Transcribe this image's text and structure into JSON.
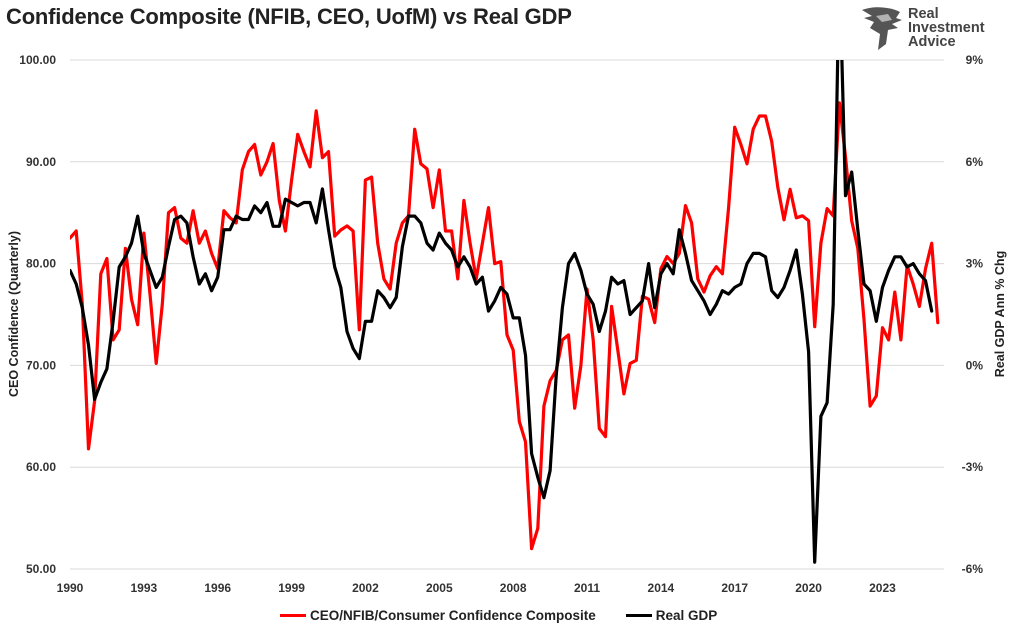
{
  "header": {
    "title": "Confidence Composite (NFIB, CEO, UofM) vs Real GDP"
  },
  "logo": {
    "line1": "Real",
    "line2": "Investment",
    "line3": "Advice"
  },
  "colors": {
    "confidence": "#ff0000",
    "gdp": "#000000",
    "grid": "#d9d9d9",
    "text": "#222222"
  },
  "chart_data": {
    "type": "line",
    "title": "Confidence Composite (NFIB, CEO, UofM) vs Real GDP",
    "xlabel": "",
    "ylabel_left": "CEO Confidence (Quarterly)",
    "ylabel_right": "Real GDP Ann % Chg",
    "x_range": [
      1990,
      2025.5
    ],
    "x_ticks": [
      "1990",
      "1993",
      "1996",
      "1999",
      "2002",
      "2005",
      "2008",
      "2011",
      "2014",
      "2017",
      "2020",
      "2023"
    ],
    "y_left_range": [
      50,
      100
    ],
    "y_left_ticks": [
      "50.00",
      "60.00",
      "70.00",
      "80.00",
      "90.00",
      "100.00"
    ],
    "y_right_range": [
      -6,
      9
    ],
    "y_right_ticks": [
      "-6%",
      "-3%",
      "0%",
      "3%",
      "6%",
      "9%"
    ],
    "grid": "horizontal",
    "legend_position": "bottom",
    "series": [
      {
        "name": "CEO/NFIB/Consumer Confidence Composite",
        "axis": "left",
        "points": [
          [
            1990.0,
            82.5
          ],
          [
            1990.25,
            83.2
          ],
          [
            1990.5,
            76.0
          ],
          [
            1990.75,
            61.8
          ],
          [
            1991.0,
            66.5
          ],
          [
            1991.25,
            79.0
          ],
          [
            1991.5,
            80.5
          ],
          [
            1991.75,
            72.5
          ],
          [
            1992.0,
            73.5
          ],
          [
            1992.25,
            81.5
          ],
          [
            1992.5,
            76.5
          ],
          [
            1992.75,
            74.0
          ],
          [
            1993.0,
            83.0
          ],
          [
            1993.25,
            77.0
          ],
          [
            1993.5,
            70.2
          ],
          [
            1993.75,
            76.0
          ],
          [
            1994.0,
            85.0
          ],
          [
            1994.25,
            85.5
          ],
          [
            1994.5,
            82.5
          ],
          [
            1994.75,
            82.0
          ],
          [
            1995.0,
            85.2
          ],
          [
            1995.25,
            82.0
          ],
          [
            1995.5,
            83.2
          ],
          [
            1995.75,
            81.0
          ],
          [
            1996.0,
            79.5
          ],
          [
            1996.25,
            85.2
          ],
          [
            1996.5,
            84.5
          ],
          [
            1996.75,
            84.0
          ],
          [
            1997.0,
            89.2
          ],
          [
            1997.25,
            91.0
          ],
          [
            1997.5,
            91.7
          ],
          [
            1997.75,
            88.7
          ],
          [
            1998.0,
            90.0
          ],
          [
            1998.25,
            91.8
          ],
          [
            1998.5,
            86.2
          ],
          [
            1998.75,
            83.2
          ],
          [
            1999.0,
            88.2
          ],
          [
            1999.25,
            92.7
          ],
          [
            1999.5,
            91.0
          ],
          [
            1999.75,
            89.5
          ],
          [
            2000.0,
            95.0
          ],
          [
            2000.25,
            90.4
          ],
          [
            2000.5,
            91.0
          ],
          [
            2000.75,
            82.7
          ],
          [
            2001.0,
            83.3
          ],
          [
            2001.25,
            83.7
          ],
          [
            2001.5,
            83.2
          ],
          [
            2001.75,
            73.5
          ],
          [
            2002.0,
            88.2
          ],
          [
            2002.25,
            88.5
          ],
          [
            2002.5,
            82.0
          ],
          [
            2002.75,
            78.5
          ],
          [
            2003.0,
            77.5
          ],
          [
            2003.25,
            82.0
          ],
          [
            2003.5,
            84.0
          ],
          [
            2003.75,
            84.7
          ],
          [
            2004.0,
            93.2
          ],
          [
            2004.25,
            89.8
          ],
          [
            2004.5,
            89.3
          ],
          [
            2004.75,
            85.5
          ],
          [
            2005.0,
            89.2
          ],
          [
            2005.25,
            83.2
          ],
          [
            2005.5,
            83.2
          ],
          [
            2005.75,
            78.5
          ],
          [
            2006.0,
            86.2
          ],
          [
            2006.25,
            82.0
          ],
          [
            2006.5,
            78.5
          ],
          [
            2006.75,
            82.0
          ],
          [
            2007.0,
            85.5
          ],
          [
            2007.25,
            80.0
          ],
          [
            2007.5,
            80.2
          ],
          [
            2007.75,
            73.0
          ],
          [
            2008.0,
            71.5
          ],
          [
            2008.25,
            64.5
          ],
          [
            2008.5,
            62.5
          ],
          [
            2008.75,
            52.0
          ],
          [
            2009.0,
            54.0
          ],
          [
            2009.25,
            66.0
          ],
          [
            2009.5,
            68.5
          ],
          [
            2009.75,
            69.5
          ],
          [
            2010.0,
            72.5
          ],
          [
            2010.25,
            73.0
          ],
          [
            2010.5,
            65.8
          ],
          [
            2010.75,
            70.0
          ],
          [
            2011.0,
            77.5
          ],
          [
            2011.25,
            72.5
          ],
          [
            2011.5,
            63.8
          ],
          [
            2011.75,
            63.0
          ],
          [
            2012.0,
            75.8
          ],
          [
            2012.25,
            71.5
          ],
          [
            2012.5,
            67.2
          ],
          [
            2012.75,
            70.2
          ],
          [
            2013.0,
            70.5
          ],
          [
            2013.25,
            76.8
          ],
          [
            2013.5,
            76.5
          ],
          [
            2013.75,
            74.2
          ],
          [
            2014.0,
            79.5
          ],
          [
            2014.25,
            80.7
          ],
          [
            2014.5,
            80.0
          ],
          [
            2014.75,
            81.0
          ],
          [
            2015.0,
            85.7
          ],
          [
            2015.25,
            84.0
          ],
          [
            2015.5,
            78.5
          ],
          [
            2015.75,
            77.2
          ],
          [
            2016.0,
            78.8
          ],
          [
            2016.25,
            79.7
          ],
          [
            2016.5,
            79.0
          ],
          [
            2016.75,
            85.5
          ],
          [
            2017.0,
            93.4
          ],
          [
            2017.25,
            91.7
          ],
          [
            2017.5,
            89.8
          ],
          [
            2017.75,
            93.2
          ],
          [
            2018.0,
            94.5
          ],
          [
            2018.25,
            94.5
          ],
          [
            2018.5,
            92.0
          ],
          [
            2018.75,
            87.5
          ],
          [
            2019.0,
            84.3
          ],
          [
            2019.25,
            87.3
          ],
          [
            2019.5,
            84.5
          ],
          [
            2019.75,
            84.7
          ],
          [
            2020.0,
            84.2
          ],
          [
            2020.25,
            73.8
          ],
          [
            2020.5,
            82.0
          ],
          [
            2020.75,
            85.4
          ],
          [
            2021.0,
            84.7
          ],
          [
            2021.25,
            95.8
          ],
          [
            2021.5,
            90.5
          ],
          [
            2021.75,
            84.2
          ],
          [
            2022.0,
            81.5
          ],
          [
            2022.25,
            74.5
          ],
          [
            2022.5,
            66.0
          ],
          [
            2022.75,
            67.0
          ],
          [
            2023.0,
            73.7
          ],
          [
            2023.25,
            72.5
          ],
          [
            2023.5,
            77.2
          ],
          [
            2023.75,
            72.5
          ],
          [
            2024.0,
            79.8
          ],
          [
            2024.25,
            78.0
          ],
          [
            2024.5,
            75.8
          ],
          [
            2024.75,
            79.5
          ],
          [
            2025.0,
            82.0
          ],
          [
            2025.25,
            74.2
          ]
        ]
      },
      {
        "name": "Real GDP",
        "axis": "right",
        "points": [
          [
            1990.0,
            2.8
          ],
          [
            1990.25,
            2.4
          ],
          [
            1990.5,
            1.7
          ],
          [
            1990.75,
            0.6
          ],
          [
            1991.0,
            -1.0
          ],
          [
            1991.25,
            -0.5
          ],
          [
            1991.5,
            -0.1
          ],
          [
            1991.75,
            1.3
          ],
          [
            1992.0,
            2.9
          ],
          [
            1992.25,
            3.2
          ],
          [
            1992.5,
            3.6
          ],
          [
            1992.75,
            4.4
          ],
          [
            1993.0,
            3.3
          ],
          [
            1993.25,
            2.8
          ],
          [
            1993.5,
            2.3
          ],
          [
            1993.75,
            2.6
          ],
          [
            1994.0,
            3.5
          ],
          [
            1994.25,
            4.3
          ],
          [
            1994.5,
            4.4
          ],
          [
            1994.75,
            4.2
          ],
          [
            1995.0,
            3.2
          ],
          [
            1995.25,
            2.4
          ],
          [
            1995.5,
            2.7
          ],
          [
            1995.75,
            2.2
          ],
          [
            1996.0,
            2.6
          ],
          [
            1996.25,
            4.0
          ],
          [
            1996.5,
            4.0
          ],
          [
            1996.75,
            4.4
          ],
          [
            1997.0,
            4.3
          ],
          [
            1997.25,
            4.3
          ],
          [
            1997.5,
            4.7
          ],
          [
            1997.75,
            4.5
          ],
          [
            1998.0,
            4.8
          ],
          [
            1998.25,
            4.1
          ],
          [
            1998.5,
            4.1
          ],
          [
            1998.75,
            4.9
          ],
          [
            1999.0,
            4.8
          ],
          [
            1999.25,
            4.7
          ],
          [
            1999.5,
            4.8
          ],
          [
            1999.75,
            4.8
          ],
          [
            2000.0,
            4.2
          ],
          [
            2000.25,
            5.2
          ],
          [
            2000.5,
            4.0
          ],
          [
            2000.75,
            2.9
          ],
          [
            2001.0,
            2.3
          ],
          [
            2001.25,
            1.0
          ],
          [
            2001.5,
            0.5
          ],
          [
            2001.75,
            0.2
          ],
          [
            2002.0,
            1.3
          ],
          [
            2002.25,
            1.3
          ],
          [
            2002.5,
            2.2
          ],
          [
            2002.75,
            2.0
          ],
          [
            2003.0,
            1.7
          ],
          [
            2003.25,
            2.0
          ],
          [
            2003.5,
            3.5
          ],
          [
            2003.75,
            4.4
          ],
          [
            2004.0,
            4.4
          ],
          [
            2004.25,
            4.2
          ],
          [
            2004.5,
            3.6
          ],
          [
            2004.75,
            3.4
          ],
          [
            2005.0,
            3.9
          ],
          [
            2005.25,
            3.6
          ],
          [
            2005.5,
            3.4
          ],
          [
            2005.75,
            2.9
          ],
          [
            2006.0,
            3.2
          ],
          [
            2006.25,
            2.9
          ],
          [
            2006.5,
            2.4
          ],
          [
            2006.75,
            2.6
          ],
          [
            2007.0,
            1.6
          ],
          [
            2007.25,
            1.9
          ],
          [
            2007.5,
            2.3
          ],
          [
            2007.75,
            2.1
          ],
          [
            2008.0,
            1.4
          ],
          [
            2008.25,
            1.4
          ],
          [
            2008.5,
            0.3
          ],
          [
            2008.75,
            -2.6
          ],
          [
            2009.0,
            -3.3
          ],
          [
            2009.25,
            -3.9
          ],
          [
            2009.5,
            -3.1
          ],
          [
            2009.75,
            -0.3
          ],
          [
            2010.0,
            1.7
          ],
          [
            2010.25,
            3.0
          ],
          [
            2010.5,
            3.3
          ],
          [
            2010.75,
            2.8
          ],
          [
            2011.0,
            2.1
          ],
          [
            2011.25,
            1.8
          ],
          [
            2011.5,
            1.0
          ],
          [
            2011.75,
            1.6
          ],
          [
            2012.0,
            2.6
          ],
          [
            2012.25,
            2.4
          ],
          [
            2012.5,
            2.5
          ],
          [
            2012.75,
            1.5
          ],
          [
            2013.0,
            1.7
          ],
          [
            2013.25,
            1.9
          ],
          [
            2013.5,
            3.0
          ],
          [
            2013.75,
            1.7
          ],
          [
            2014.0,
            2.7
          ],
          [
            2014.25,
            3.0
          ],
          [
            2014.5,
            2.7
          ],
          [
            2014.75,
            4.0
          ],
          [
            2015.0,
            3.3
          ],
          [
            2015.25,
            2.5
          ],
          [
            2015.5,
            2.2
          ],
          [
            2015.75,
            1.9
          ],
          [
            2016.0,
            1.5
          ],
          [
            2016.25,
            1.8
          ],
          [
            2016.5,
            2.2
          ],
          [
            2016.75,
            2.1
          ],
          [
            2017.0,
            2.3
          ],
          [
            2017.25,
            2.4
          ],
          [
            2017.5,
            3.0
          ],
          [
            2017.75,
            3.3
          ],
          [
            2018.0,
            3.3
          ],
          [
            2018.25,
            3.2
          ],
          [
            2018.5,
            2.2
          ],
          [
            2018.75,
            2.0
          ],
          [
            2019.0,
            2.3
          ],
          [
            2019.25,
            2.8
          ],
          [
            2019.5,
            3.4
          ],
          [
            2019.75,
            2.1
          ],
          [
            2020.0,
            0.4
          ],
          [
            2020.25,
            -5.8
          ],
          [
            2020.5,
            -1.5
          ],
          [
            2020.75,
            -1.1
          ],
          [
            2021.0,
            1.8
          ],
          [
            2021.25,
            11.8
          ],
          [
            2021.5,
            5.0
          ],
          [
            2021.75,
            5.7
          ],
          [
            2022.0,
            4.0
          ],
          [
            2022.25,
            2.4
          ],
          [
            2022.5,
            2.2
          ],
          [
            2022.75,
            1.3
          ],
          [
            2023.0,
            2.3
          ],
          [
            2023.25,
            2.8
          ],
          [
            2023.5,
            3.2
          ],
          [
            2023.75,
            3.2
          ],
          [
            2024.0,
            2.9
          ],
          [
            2024.25,
            3.0
          ],
          [
            2024.5,
            2.7
          ],
          [
            2024.75,
            2.5
          ],
          [
            2025.0,
            1.6
          ]
        ]
      }
    ]
  }
}
